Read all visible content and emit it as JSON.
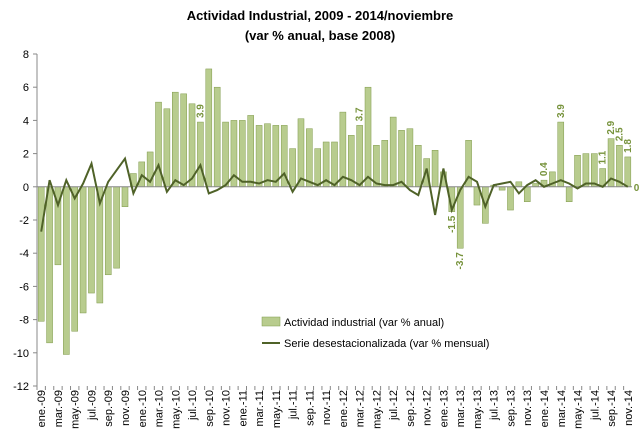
{
  "chart_data": {
    "type": "bar",
    "title": "Actividad Industrial, 2009 - 2014/noviembre",
    "subtitle": "(var % anual, base 2008)",
    "categories": [
      "ene.-09",
      null,
      "mar.-09",
      null,
      "may.-09",
      null,
      "jul.-09",
      null,
      "sep.-09",
      null,
      "nov.-09",
      null,
      "ene.-10",
      null,
      "mar.-10",
      null,
      "may.-10",
      null,
      "jul.-10",
      null,
      "sep.-10",
      null,
      "nov.-10",
      null,
      "ene.-11",
      null,
      "mar.-11",
      null,
      "may.-11",
      null,
      "jul.-11",
      null,
      "sep.-11",
      null,
      "nov.-11",
      null,
      "ene.-12",
      null,
      "mar.-12",
      null,
      "may.-12",
      null,
      "jul.-12",
      null,
      "sep.-12",
      null,
      "nov.-12",
      null,
      "ene.-13",
      null,
      "mar.-13",
      null,
      "may.-13",
      null,
      "jul.-13",
      null,
      "sep.-13",
      null,
      "nov.-13",
      null,
      "ene.-14",
      null,
      "mar.-14",
      null,
      "may.-14",
      null,
      "jul.-14",
      null,
      "sep.-14",
      null,
      "nov.-14"
    ],
    "series": [
      {
        "name": "Actividad industrial (var % anual)",
        "type": "bar",
        "color": "#b8cc8e",
        "edge": "#7f9a4a",
        "values": [
          -8.1,
          -9.4,
          -4.7,
          -10.1,
          -8.7,
          -7.6,
          -6.4,
          -7.0,
          -5.3,
          -4.9,
          -1.2,
          0.8,
          1.5,
          2.1,
          5.1,
          4.7,
          5.7,
          5.6,
          5.0,
          3.9,
          7.1,
          6.0,
          3.9,
          4.0,
          4.0,
          4.3,
          3.7,
          3.8,
          3.7,
          3.7,
          2.3,
          4.1,
          3.5,
          2.3,
          2.7,
          2.7,
          4.5,
          3.1,
          3.7,
          6.0,
          2.5,
          2.8,
          4.2,
          3.4,
          3.5,
          2.5,
          1.7,
          2.2,
          0.9,
          -1.5,
          -3.7,
          2.8,
          -1.1,
          -2.2,
          0.1,
          -0.2,
          -1.4,
          0.3,
          -0.9,
          0.2,
          0.4,
          0.9,
          3.9,
          -0.9,
          1.9,
          2.0,
          2.0,
          1.1,
          2.9,
          2.5,
          1.8
        ],
        "value_labels": [
          null,
          null,
          null,
          null,
          null,
          null,
          null,
          null,
          null,
          null,
          null,
          null,
          null,
          null,
          null,
          null,
          null,
          null,
          null,
          "3.9",
          null,
          null,
          null,
          null,
          null,
          null,
          null,
          null,
          null,
          null,
          null,
          null,
          null,
          null,
          null,
          null,
          null,
          null,
          "3.7",
          null,
          null,
          null,
          null,
          null,
          null,
          null,
          null,
          null,
          null,
          "-1.5",
          "-3.7",
          null,
          null,
          null,
          null,
          null,
          null,
          null,
          null,
          null,
          "0.4",
          null,
          "3.9",
          null,
          null,
          null,
          null,
          "1.1",
          "2.9",
          "2.5",
          "1.8"
        ]
      },
      {
        "name": "Serie desestacionalizada (var % mensual)",
        "type": "line",
        "color": "#4f6228",
        "values": [
          -2.7,
          0.4,
          -1.1,
          0.4,
          -0.7,
          0.2,
          1.4,
          -1.0,
          0.3,
          1.0,
          1.7,
          -0.4,
          0.7,
          0.3,
          1.3,
          -0.3,
          0.4,
          0.1,
          0.5,
          1.3,
          -0.4,
          -0.2,
          0.1,
          0.7,
          0.3,
          0.3,
          0.2,
          0.4,
          0.3,
          0.8,
          -0.3,
          0.5,
          0.3,
          0.1,
          0.4,
          0.1,
          0.6,
          0.4,
          0.1,
          0.6,
          0.2,
          0.1,
          0.1,
          0.3,
          -0.2,
          -0.5,
          1.1,
          -1.7,
          1.1,
          -1.4,
          -0.2,
          0.6,
          0.3,
          -1.2,
          0.1,
          0.2,
          0.3,
          -0.4,
          0.1,
          0.4,
          0.0,
          0.2,
          0.4,
          0.2,
          -0.1,
          0.2,
          0.2,
          0.0,
          0.5,
          0.3,
          0
        ],
        "value_labels": [
          null,
          null,
          null,
          null,
          null,
          null,
          null,
          null,
          null,
          null,
          null,
          null,
          null,
          null,
          null,
          null,
          null,
          null,
          null,
          null,
          null,
          null,
          null,
          null,
          null,
          null,
          null,
          null,
          null,
          null,
          null,
          null,
          null,
          null,
          null,
          null,
          null,
          null,
          null,
          null,
          null,
          null,
          null,
          null,
          null,
          null,
          null,
          null,
          null,
          null,
          null,
          null,
          null,
          null,
          null,
          null,
          null,
          null,
          null,
          null,
          null,
          null,
          null,
          null,
          null,
          null,
          null,
          null,
          null,
          null,
          "0"
        ]
      }
    ],
    "ylim": [
      -12,
      8
    ],
    "yticks": [
      -12,
      -10,
      -8,
      -6,
      -4,
      -2,
      0,
      2,
      4,
      6,
      8
    ]
  }
}
